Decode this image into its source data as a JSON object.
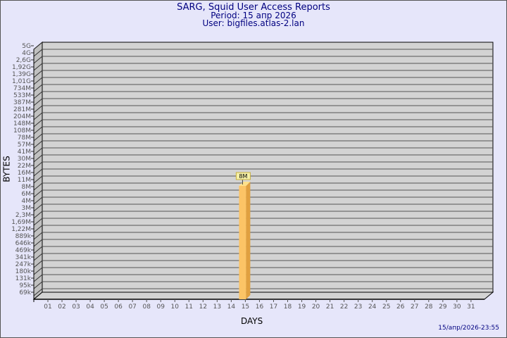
{
  "header": {
    "title": "SARG, Squid User Access Reports",
    "period": "Period: 15 апр 2026",
    "user": "User: bigfiles.atlas-2.lan"
  },
  "timestamp": "15/апр/2026-23:55",
  "chart_data": {
    "type": "bar",
    "xlabel": "DAYS",
    "ylabel": "BYTES",
    "y_scale": "log",
    "grid": true,
    "y_tick_labels": [
      "5G",
      "4G",
      "2,6G",
      "1,92G",
      "1,39G",
      "1,01G",
      "734M",
      "533M",
      "387M",
      "281M",
      "204M",
      "148M",
      "108M",
      "78M",
      "57M",
      "41M",
      "30M",
      "22M",
      "16M",
      "11M",
      "8M",
      "6M",
      "4M",
      "3M",
      "2,3M",
      "1,69M",
      "1,22M",
      "889k",
      "646k",
      "469k",
      "341k",
      "247k",
      "180k",
      "131k",
      "95k",
      "69k"
    ],
    "categories": [
      "01",
      "02",
      "03",
      "04",
      "05",
      "06",
      "07",
      "08",
      "09",
      "10",
      "11",
      "12",
      "13",
      "14",
      "15",
      "16",
      "17",
      "18",
      "19",
      "20",
      "21",
      "22",
      "23",
      "24",
      "25",
      "26",
      "27",
      "28",
      "29",
      "30",
      "31"
    ],
    "series": [
      {
        "values": {
          "15": "8M"
        },
        "data_labels": {
          "15": "8M"
        }
      }
    ],
    "colors": {
      "bar": "#fcc466",
      "bar_side": "#e0a040",
      "bar_top": "#fde08a",
      "plot_bg": "#d3d3d3",
      "wall": "#c0c0c0",
      "label_bg": "#f5f0a8"
    }
  }
}
